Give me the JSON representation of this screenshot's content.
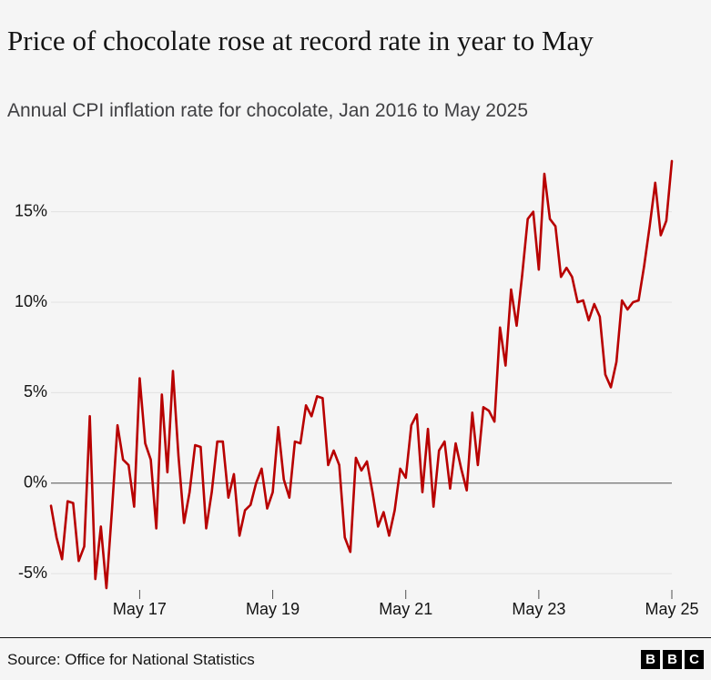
{
  "chart_data": {
    "type": "line",
    "title": "Price of chocolate rose at record rate in year to May",
    "subtitle": "Annual CPI inflation rate for chocolate, Jan 2016 to May 2025",
    "source": "Source: Office for National Statistics",
    "logo": [
      "B",
      "B",
      "C"
    ],
    "x": [
      "2016-01",
      "2016-02",
      "2016-03",
      "2016-04",
      "2016-05",
      "2016-06",
      "2016-07",
      "2016-08",
      "2016-09",
      "2016-10",
      "2016-11",
      "2016-12",
      "2017-01",
      "2017-02",
      "2017-03",
      "2017-04",
      "2017-05",
      "2017-06",
      "2017-07",
      "2017-08",
      "2017-09",
      "2017-10",
      "2017-11",
      "2017-12",
      "2018-01",
      "2018-02",
      "2018-03",
      "2018-04",
      "2018-05",
      "2018-06",
      "2018-07",
      "2018-08",
      "2018-09",
      "2018-10",
      "2018-11",
      "2018-12",
      "2019-01",
      "2019-02",
      "2019-03",
      "2019-04",
      "2019-05",
      "2019-06",
      "2019-07",
      "2019-08",
      "2019-09",
      "2019-10",
      "2019-11",
      "2019-12",
      "2020-01",
      "2020-02",
      "2020-03",
      "2020-04",
      "2020-05",
      "2020-06",
      "2020-07",
      "2020-08",
      "2020-09",
      "2020-10",
      "2020-11",
      "2020-12",
      "2021-01",
      "2021-02",
      "2021-03",
      "2021-04",
      "2021-05",
      "2021-06",
      "2021-07",
      "2021-08",
      "2021-09",
      "2021-10",
      "2021-11",
      "2021-12",
      "2022-01",
      "2022-02",
      "2022-03",
      "2022-04",
      "2022-05",
      "2022-06",
      "2022-07",
      "2022-08",
      "2022-09",
      "2022-10",
      "2022-11",
      "2022-12",
      "2023-01",
      "2023-02",
      "2023-03",
      "2023-04",
      "2023-05",
      "2023-06",
      "2023-07",
      "2023-08",
      "2023-09",
      "2023-10",
      "2023-11",
      "2023-12",
      "2024-01",
      "2024-02",
      "2024-03",
      "2024-04",
      "2024-05",
      "2024-06",
      "2024-07",
      "2024-08",
      "2024-09",
      "2024-10",
      "2024-11",
      "2024-12",
      "2025-01",
      "2025-02",
      "2025-03",
      "2025-04",
      "2025-05"
    ],
    "series": [
      {
        "name": "Chocolate",
        "color": "#b80000",
        "values": [
          -1.25,
          -3,
          -4.2,
          -1,
          -1.1,
          -4.3,
          -3.5,
          3.7,
          -5.3,
          -2.4,
          -5.8,
          -1.5,
          3.2,
          1.3,
          1.0,
          -1.3,
          5.8,
          2.2,
          1.3,
          -2.5,
          4.9,
          0.6,
          6.2,
          1.5,
          -2.2,
          -0.5,
          2.1,
          2.0,
          -2.5,
          -0.5,
          2.3,
          2.3,
          -0.8,
          0.5,
          -2.9,
          -1.5,
          -1.2,
          0,
          0.8,
          -1.4,
          -0.5,
          3.1,
          0.2,
          -0.8,
          2.3,
          2.2,
          4.3,
          3.7,
          4.8,
          4.7,
          1.0,
          1.8,
          1.0,
          -3.0,
          -3.8,
          1.4,
          0.7,
          1.2,
          -0.5,
          -2.4,
          -1.6,
          -2.9,
          -1.5,
          0.8,
          0.3,
          3.2,
          3.8,
          -0.5,
          3.0,
          -1.3,
          1.8,
          2.3,
          -0.3,
          2.2,
          0.8,
          -0.4,
          3.9,
          1.0,
          4.2,
          4.0,
          3.4,
          8.6,
          6.5,
          10.7,
          8.7,
          11.5,
          14.6,
          15,
          11.8,
          17.1,
          14.6,
          14.2,
          11.4,
          11.9,
          11.4,
          10,
          10.1,
          9.0,
          9.9,
          9.2,
          6.0,
          5.3,
          6.7,
          10.1,
          9.6,
          10,
          10.1,
          12,
          14.2,
          16.6,
          13.7,
          14.5,
          17.8
        ]
      }
    ],
    "xlim": [
      "2016-01",
      "2025-05"
    ],
    "xticks": [
      {
        "value": "2017-05",
        "label": "May 17"
      },
      {
        "value": "2019-05",
        "label": "May 19"
      },
      {
        "value": "2021-05",
        "label": "May 21"
      },
      {
        "value": "2023-05",
        "label": "May 23"
      },
      {
        "value": "2025-05",
        "label": "May 25"
      }
    ],
    "ylim": [
      -6.2,
      18
    ],
    "yticks": [
      {
        "value": -5,
        "label": "-5%"
      },
      {
        "value": 0,
        "label": "0%"
      },
      {
        "value": 5,
        "label": "5%"
      },
      {
        "value": 10,
        "label": "10%"
      },
      {
        "value": 15,
        "label": "15%"
      }
    ],
    "grid": true
  }
}
